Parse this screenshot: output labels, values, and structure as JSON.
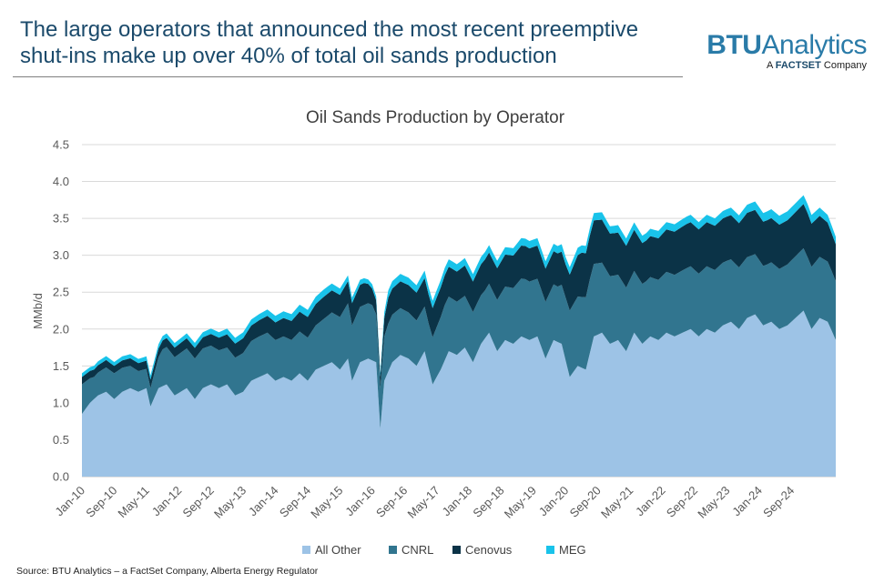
{
  "header": {
    "headline": "The large operators that announced the most recent preemptive shut-ins make up over 40% of total oil sands production"
  },
  "logo": {
    "name_bold": "BTU",
    "name_rest": "Analytics",
    "tagline_pre": "A ",
    "tagline_brand": "FACTSET",
    "tagline_post": " Company"
  },
  "footer": {
    "source": "Source: BTU Analytics – a FactSet Company, Alberta Energy Regulator"
  },
  "chart_data": {
    "type": "area",
    "stacked": true,
    "title": "Oil Sands Production by Operator",
    "xlabel": "",
    "ylabel": "MMb/d",
    "ylim": [
      0,
      4.5
    ],
    "yticks": [
      "0.0",
      "0.5",
      "1.0",
      "1.5",
      "2.0",
      "2.5",
      "3.0",
      "3.5",
      "4.0",
      "4.5"
    ],
    "gridlines": true,
    "legend_position": "bottom",
    "x_start": "Jan-10",
    "x_end": "Dec-25",
    "x_tick_labels": [
      "Jan-10",
      "Sep-10",
      "May-11",
      "Jan-12",
      "Sep-12",
      "May-13",
      "Jan-14",
      "Sep-14",
      "May-15",
      "Jan-16",
      "Sep-16",
      "May-17",
      "Jan-18",
      "Sep-18",
      "May-19",
      "Jan-20",
      "Sep-20",
      "May-21",
      "Jan-22",
      "Sep-22",
      "May-23",
      "Jan-24",
      "Sep-24"
    ],
    "colors": {
      "All Other": "#9dc3e6",
      "CNRL": "#31758f",
      "Cenovus": "#0b3347",
      "MEG": "#19c3ea"
    },
    "series": [
      {
        "name": "All Other",
        "anchors": [
          [
            0,
            0.85
          ],
          [
            2,
            1.0
          ],
          [
            4,
            1.1
          ],
          [
            6,
            1.15
          ],
          [
            8,
            1.05
          ],
          [
            10,
            1.15
          ],
          [
            12,
            1.2
          ],
          [
            14,
            1.15
          ],
          [
            16,
            1.2
          ],
          [
            17,
            0.95
          ],
          [
            19,
            1.2
          ],
          [
            21,
            1.25
          ],
          [
            23,
            1.1
          ],
          [
            26,
            1.2
          ],
          [
            28,
            1.05
          ],
          [
            30,
            1.2
          ],
          [
            32,
            1.25
          ],
          [
            34,
            1.2
          ],
          [
            36,
            1.25
          ],
          [
            38,
            1.1
          ],
          [
            40,
            1.15
          ],
          [
            42,
            1.3
          ],
          [
            44,
            1.35
          ],
          [
            46,
            1.4
          ],
          [
            48,
            1.3
          ],
          [
            50,
            1.35
          ],
          [
            52,
            1.3
          ],
          [
            54,
            1.4
          ],
          [
            56,
            1.3
          ],
          [
            58,
            1.45
          ],
          [
            60,
            1.5
          ],
          [
            62,
            1.55
          ],
          [
            64,
            1.45
          ],
          [
            66,
            1.6
          ],
          [
            67,
            1.3
          ],
          [
            69,
            1.55
          ],
          [
            71,
            1.6
          ],
          [
            73,
            1.55
          ],
          [
            74,
            0.65
          ],
          [
            75,
            1.3
          ],
          [
            77,
            1.55
          ],
          [
            79,
            1.65
          ],
          [
            81,
            1.6
          ],
          [
            83,
            1.5
          ],
          [
            85,
            1.7
          ],
          [
            87,
            1.25
          ],
          [
            89,
            1.45
          ],
          [
            91,
            1.7
          ],
          [
            93,
            1.65
          ],
          [
            95,
            1.75
          ],
          [
            97,
            1.55
          ],
          [
            99,
            1.8
          ],
          [
            101,
            1.95
          ],
          [
            103,
            1.7
          ],
          [
            105,
            1.85
          ],
          [
            107,
            1.8
          ],
          [
            109,
            1.9
          ],
          [
            111,
            1.85
          ],
          [
            113,
            1.9
          ],
          [
            115,
            1.6
          ],
          [
            117,
            1.85
          ],
          [
            119,
            1.8
          ],
          [
            121,
            1.35
          ],
          [
            123,
            1.5
          ],
          [
            125,
            1.45
          ],
          [
            127,
            1.9
          ],
          [
            129,
            1.95
          ],
          [
            131,
            1.8
          ],
          [
            133,
            1.85
          ],
          [
            135,
            1.7
          ],
          [
            137,
            1.95
          ],
          [
            139,
            1.8
          ],
          [
            141,
            1.9
          ],
          [
            143,
            1.85
          ],
          [
            145,
            1.95
          ],
          [
            147,
            1.9
          ],
          [
            149,
            1.95
          ],
          [
            151,
            2.0
          ],
          [
            153,
            1.9
          ],
          [
            155,
            2.0
          ],
          [
            157,
            1.95
          ],
          [
            159,
            2.05
          ],
          [
            161,
            2.1
          ],
          [
            163,
            2.0
          ],
          [
            165,
            2.15
          ],
          [
            167,
            2.2
          ],
          [
            169,
            2.05
          ],
          [
            171,
            2.1
          ],
          [
            173,
            2.0
          ],
          [
            175,
            2.05
          ],
          [
            177,
            2.15
          ],
          [
            179,
            2.25
          ],
          [
            181,
            2.0
          ],
          [
            183,
            2.15
          ],
          [
            185,
            2.1
          ],
          [
            187,
            1.85
          ]
        ]
      },
      {
        "name": "CNRL",
        "anchors": [
          [
            0,
            0.4
          ],
          [
            3,
            0.3
          ],
          [
            8,
            0.35
          ],
          [
            12,
            0.3
          ],
          [
            17,
            0.25
          ],
          [
            20,
            0.5
          ],
          [
            28,
            0.55
          ],
          [
            36,
            0.5
          ],
          [
            44,
            0.55
          ],
          [
            52,
            0.55
          ],
          [
            58,
            0.6
          ],
          [
            66,
            0.75
          ],
          [
            72,
            0.75
          ],
          [
            74,
            0.55
          ],
          [
            76,
            0.65
          ],
          [
            86,
            0.6
          ],
          [
            90,
            0.75
          ],
          [
            100,
            0.65
          ],
          [
            110,
            0.8
          ],
          [
            118,
            0.75
          ],
          [
            121,
            0.9
          ],
          [
            126,
            1.0
          ],
          [
            132,
            0.9
          ],
          [
            140,
            0.8
          ],
          [
            150,
            0.85
          ],
          [
            160,
            0.85
          ],
          [
            170,
            0.8
          ],
          [
            180,
            0.85
          ],
          [
            187,
            0.8
          ]
        ]
      },
      {
        "name": "Cenovus",
        "anchors": [
          [
            0,
            0.1
          ],
          [
            10,
            0.1
          ],
          [
            20,
            0.12
          ],
          [
            30,
            0.15
          ],
          [
            40,
            0.2
          ],
          [
            50,
            0.25
          ],
          [
            60,
            0.3
          ],
          [
            66,
            0.3
          ],
          [
            70,
            0.3
          ],
          [
            74,
            0.15
          ],
          [
            76,
            0.35
          ],
          [
            88,
            0.4
          ],
          [
            100,
            0.42
          ],
          [
            110,
            0.45
          ],
          [
            120,
            0.45
          ],
          [
            124,
            0.6
          ],
          [
            130,
            0.58
          ],
          [
            140,
            0.55
          ],
          [
            150,
            0.6
          ],
          [
            160,
            0.6
          ],
          [
            170,
            0.6
          ],
          [
            180,
            0.6
          ],
          [
            187,
            0.5
          ]
        ]
      },
      {
        "name": "MEG",
        "anchors": [
          [
            0,
            0.05
          ],
          [
            20,
            0.06
          ],
          [
            40,
            0.08
          ],
          [
            60,
            0.1
          ],
          [
            74,
            0.05
          ],
          [
            76,
            0.1
          ],
          [
            100,
            0.1
          ],
          [
            120,
            0.1
          ],
          [
            140,
            0.1
          ],
          [
            160,
            0.1
          ],
          [
            170,
            0.12
          ],
          [
            180,
            0.12
          ],
          [
            187,
            0.1
          ]
        ]
      }
    ]
  }
}
